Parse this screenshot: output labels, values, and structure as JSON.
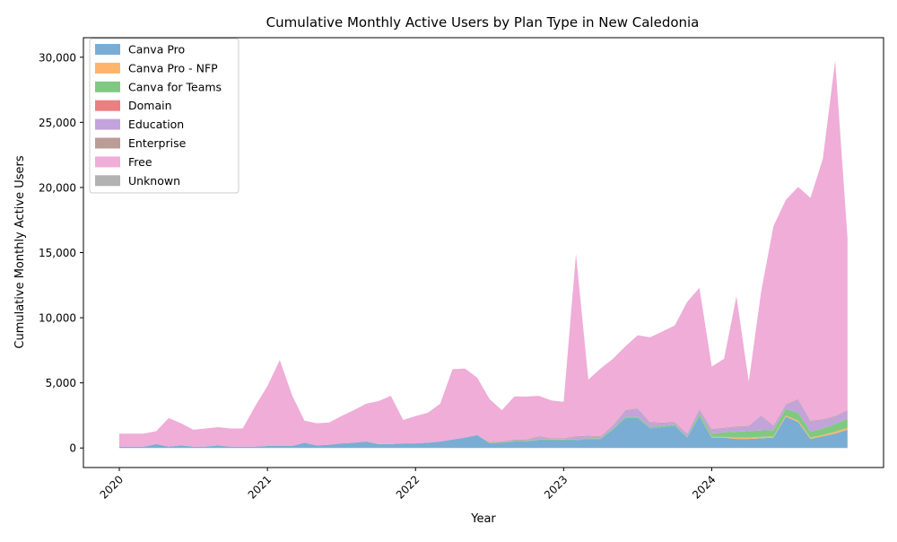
{
  "chart_data": {
    "type": "area",
    "title": "Cumulative Monthly Active Users by Plan Type in New Caledonia",
    "xlabel": "Year",
    "ylabel": "Cumulative Monthly Active Users",
    "x_start": "2020-01",
    "x_tick_labels": [
      "2020",
      "2021",
      "2022",
      "2023",
      "2024"
    ],
    "y_ticks": [
      0,
      5000,
      10000,
      15000,
      20000,
      25000,
      30000
    ],
    "y_tick_labels": [
      "0",
      "5,000",
      "10,000",
      "15,000",
      "20,000",
      "25,000",
      "30,000"
    ],
    "ylim": [
      -1500,
      31500
    ],
    "legend_position": "upper-left",
    "x": [
      "2020-01",
      "2020-02",
      "2020-03",
      "2020-04",
      "2020-05",
      "2020-06",
      "2020-07",
      "2020-08",
      "2020-09",
      "2020-10",
      "2020-11",
      "2020-12",
      "2021-01",
      "2021-02",
      "2021-03",
      "2021-04",
      "2021-05",
      "2021-06",
      "2021-07",
      "2021-08",
      "2021-09",
      "2021-10",
      "2021-11",
      "2021-12",
      "2022-01",
      "2022-02",
      "2022-03",
      "2022-04",
      "2022-05",
      "2022-06",
      "2022-07",
      "2022-08",
      "2022-09",
      "2022-10",
      "2022-11",
      "2022-12",
      "2023-01",
      "2023-02",
      "2023-03",
      "2023-04",
      "2023-05",
      "2023-06",
      "2023-07",
      "2023-08",
      "2023-09",
      "2023-10",
      "2023-11",
      "2023-12",
      "2024-01",
      "2024-02",
      "2024-03",
      "2024-04",
      "2024-05",
      "2024-06",
      "2024-07",
      "2024-08",
      "2024-09",
      "2024-10",
      "2024-11",
      "2024-12"
    ],
    "series": [
      {
        "name": "Canva Pro",
        "color": "#7aadd4",
        "values": [
          100,
          100,
          100,
          300,
          100,
          200,
          100,
          100,
          200,
          100,
          100,
          100,
          150,
          150,
          150,
          400,
          200,
          250,
          350,
          400,
          500,
          300,
          300,
          350,
          350,
          400,
          500,
          650,
          800,
          1000,
          350,
          400,
          500,
          500,
          600,
          600,
          600,
          600,
          700,
          700,
          1400,
          2300,
          2300,
          1500,
          1600,
          1700,
          800,
          2400,
          800,
          800,
          700,
          700,
          750,
          800,
          2400,
          2000,
          700,
          900,
          1100,
          1400
        ]
      },
      {
        "name": "Canva Pro - NFP",
        "color": "#ffb46c",
        "values": [
          0,
          0,
          0,
          0,
          0,
          0,
          0,
          0,
          0,
          0,
          0,
          0,
          0,
          0,
          0,
          0,
          0,
          0,
          0,
          0,
          0,
          0,
          0,
          0,
          0,
          0,
          0,
          0,
          0,
          0,
          0,
          0,
          0,
          0,
          0,
          0,
          0,
          0,
          0,
          0,
          0,
          0,
          0,
          0,
          0,
          0,
          0,
          0,
          50,
          50,
          100,
          100,
          100,
          80,
          100,
          100,
          100,
          100,
          150,
          150
        ]
      },
      {
        "name": "Canva for Teams",
        "color": "#80c980",
        "values": [
          0,
          0,
          0,
          0,
          0,
          0,
          0,
          0,
          0,
          0,
          0,
          0,
          0,
          0,
          0,
          0,
          0,
          0,
          0,
          0,
          0,
          0,
          0,
          0,
          0,
          0,
          0,
          0,
          0,
          0,
          50,
          50,
          50,
          50,
          50,
          50,
          50,
          50,
          50,
          50,
          100,
          100,
          100,
          100,
          100,
          100,
          50,
          200,
          250,
          350,
          450,
          500,
          500,
          500,
          500,
          600,
          450,
          500,
          600,
          700
        ]
      },
      {
        "name": "Domain",
        "color": "#ea8080",
        "values": [
          0,
          0,
          0,
          0,
          0,
          0,
          0,
          0,
          0,
          0,
          0,
          0,
          0,
          0,
          0,
          0,
          0,
          0,
          0,
          0,
          0,
          0,
          0,
          0,
          0,
          0,
          0,
          0,
          0,
          0,
          0,
          0,
          0,
          0,
          0,
          0,
          0,
          0,
          0,
          0,
          0,
          0,
          0,
          0,
          0,
          0,
          0,
          0,
          0,
          0,
          0,
          0,
          0,
          0,
          0,
          0,
          0,
          0,
          0,
          0
        ]
      },
      {
        "name": "Education",
        "color": "#c2a3da",
        "values": [
          0,
          0,
          0,
          0,
          0,
          0,
          0,
          0,
          0,
          0,
          0,
          0,
          0,
          0,
          0,
          0,
          0,
          0,
          0,
          0,
          0,
          0,
          0,
          0,
          0,
          0,
          0,
          0,
          0,
          0,
          0,
          0,
          50,
          50,
          200,
          50,
          50,
          200,
          150,
          100,
          200,
          450,
          600,
          350,
          200,
          150,
          200,
          350,
          300,
          300,
          350,
          350,
          1100,
          300,
          300,
          1000,
          800,
          650,
          550,
          600
        ]
      },
      {
        "name": "Enterprise",
        "color": "#bb9c96",
        "values": [
          0,
          0,
          0,
          0,
          0,
          0,
          0,
          0,
          0,
          0,
          0,
          0,
          0,
          0,
          0,
          0,
          0,
          0,
          0,
          0,
          0,
          0,
          0,
          0,
          0,
          0,
          0,
          0,
          0,
          0,
          50,
          50,
          50,
          50,
          50,
          50,
          50,
          50,
          50,
          50,
          50,
          50,
          50,
          50,
          50,
          50,
          50,
          50,
          50,
          50,
          50,
          50,
          50,
          50,
          50,
          50,
          50,
          50,
          50,
          50
        ]
      },
      {
        "name": "Free",
        "color": "#efadd8",
        "values": [
          1000,
          1000,
          1000,
          1000,
          2200,
          1700,
          1300,
          1400,
          1400,
          1400,
          1400,
          3100,
          4600,
          6600,
          3900,
          1700,
          1700,
          1700,
          2100,
          2500,
          2900,
          3300,
          3700,
          1800,
          2100,
          2300,
          2900,
          5400,
          5300,
          4400,
          3300,
          2400,
          3300,
          3300,
          3100,
          2900,
          2800,
          14000,
          4300,
          5200,
          5100,
          4900,
          5600,
          6500,
          7000,
          7400,
          10100,
          9300,
          4800,
          5300,
          10000,
          3400,
          9500,
          15300,
          15700,
          16300,
          17100,
          20000,
          27300,
          13200
        ]
      },
      {
        "name": "Unknown",
        "color": "#b2b2b2",
        "values": [
          0,
          0,
          0,
          0,
          0,
          0,
          0,
          0,
          0,
          0,
          0,
          0,
          0,
          0,
          0,
          0,
          0,
          0,
          0,
          0,
          0,
          0,
          0,
          0,
          0,
          0,
          0,
          0,
          0,
          0,
          0,
          0,
          0,
          0,
          0,
          0,
          0,
          0,
          0,
          0,
          0,
          0,
          0,
          0,
          0,
          0,
          0,
          0,
          0,
          0,
          0,
          0,
          0,
          0,
          0,
          0,
          0,
          0,
          0,
          0
        ]
      }
    ]
  }
}
